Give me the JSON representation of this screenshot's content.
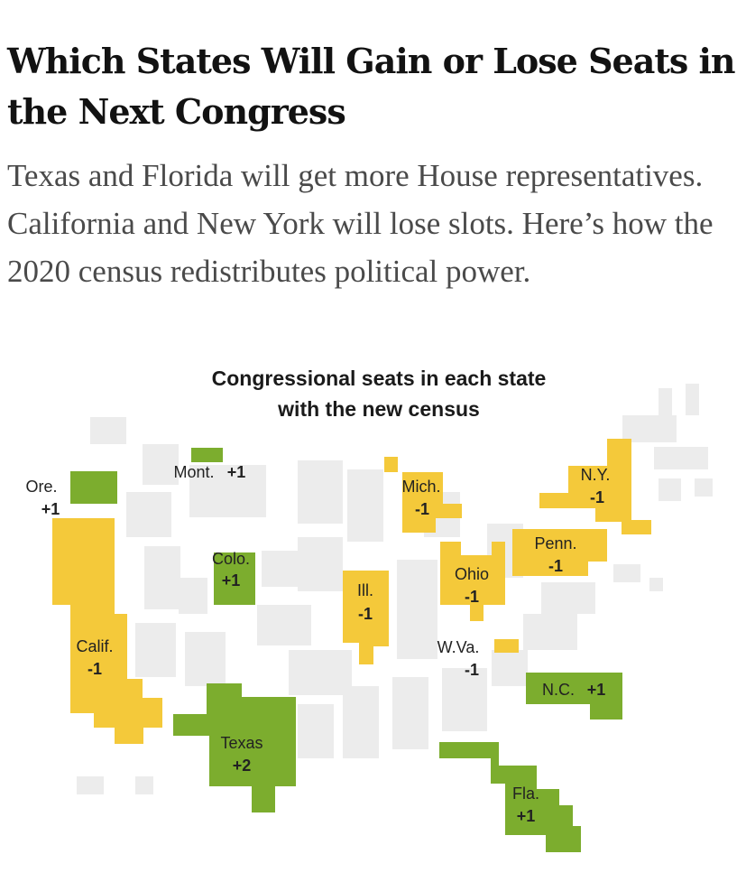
{
  "article": {
    "headline": "Which States Will Gain or Lose Seats in the Next Congress",
    "dek": "Texas and Florida will get more House representatives. California and New York will lose slots. Here’s how the 2020 census redistributes political power."
  },
  "map": {
    "title_line1": "Congressional seats in each state",
    "title_line2": "with the new census",
    "colors": {
      "gain": "#7cad2e",
      "loss": "#f4c93a",
      "unchanged": "#ececec",
      "text": "#222222"
    },
    "states": [
      {
        "id": "oregon",
        "name": "Ore.",
        "change_label": "+1",
        "change": 1
      },
      {
        "id": "montana",
        "name": "Mont.",
        "change_label": "+1",
        "change": 1
      },
      {
        "id": "colorado",
        "name": "Colo.",
        "change_label": "+1",
        "change": 1
      },
      {
        "id": "california",
        "name": "Calif.",
        "change_label": "-1",
        "change": -1
      },
      {
        "id": "texas",
        "name": "Texas",
        "change_label": "+2",
        "change": 2
      },
      {
        "id": "michigan",
        "name": "Mich.",
        "change_label": "-1",
        "change": -1
      },
      {
        "id": "illinois",
        "name": "Ill.",
        "change_label": "-1",
        "change": -1
      },
      {
        "id": "ohio",
        "name": "Ohio",
        "change_label": "-1",
        "change": -1
      },
      {
        "id": "west-virginia",
        "name": "W.Va.",
        "change_label": "-1",
        "change": -1
      },
      {
        "id": "new-york",
        "name": "N.Y.",
        "change_label": "-1",
        "change": -1
      },
      {
        "id": "pennsylvania",
        "name": "Penn.",
        "change_label": "-1",
        "change": -1
      },
      {
        "id": "north-carolina",
        "name": "N.C.",
        "change_label": "+1",
        "change": 1
      },
      {
        "id": "florida",
        "name": "Fla.",
        "change_label": "+1",
        "change": 1
      }
    ]
  }
}
